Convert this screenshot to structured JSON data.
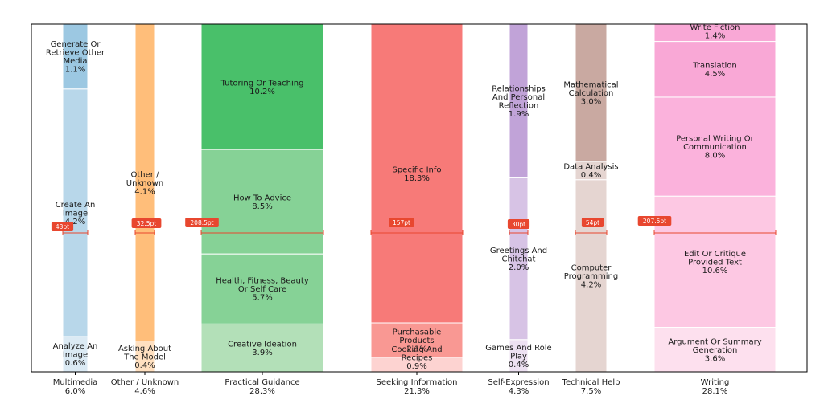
{
  "chart_data": {
    "type": "stacked-bar",
    "colors": {
      "measure": "#e8472f",
      "frame": "#000000"
    },
    "categories": [
      {
        "name": "Multimedia",
        "total": "6.0%",
        "measure_label": "43pt",
        "segments": [
          {
            "label": "Analyze An Image",
            "value": 0.6,
            "display": "0.6%",
            "color": "#dbeaf4"
          },
          {
            "label": "Create An Image",
            "value": 4.2,
            "display": "4.2%",
            "color": "#b8d7ea"
          },
          {
            "label": "Generate Or Retrieve Other Media",
            "value": 1.1,
            "display": "1.1%",
            "color": "#9cc8e2"
          }
        ]
      },
      {
        "name": "Other / Unknown",
        "total": "4.6%",
        "measure_label": "32.5pt",
        "segments": [
          {
            "label": "Asking About The Model",
            "value": 0.4,
            "display": "0.4%",
            "color": "#ffe0c0"
          },
          {
            "label": "Other / Unknown",
            "value": 4.1,
            "display": "4.1%",
            "color": "#ffbe7a"
          }
        ]
      },
      {
        "name": "Practical Guidance",
        "total": "28.3%",
        "measure_label": "208.5pt",
        "segments": [
          {
            "label": "Creative Ideation",
            "value": 3.9,
            "display": "3.9%",
            "color": "#b3e0b8"
          },
          {
            "label": "Health, Fitness, Beauty Or Self Care",
            "value": 5.7,
            "display": "5.7%",
            "color": "#86d296"
          },
          {
            "label": "How To Advice",
            "value": 8.5,
            "display": "8.5%",
            "color": "#86d296"
          },
          {
            "label": "Tutoring Or Teaching",
            "value": 10.2,
            "display": "10.2%",
            "color": "#49c06a"
          }
        ]
      },
      {
        "name": "Seeking Information",
        "total": "21.3%",
        "measure_label": "157pt",
        "segments": [
          {
            "label": "Cooking And Recipes",
            "value": 0.9,
            "display": "0.9%",
            "color": "#fdd3d1"
          },
          {
            "label": "Purchasable Products",
            "value": 2.1,
            "display": "2.1%",
            "color": "#f99893"
          },
          {
            "label": "Specific Info",
            "value": 18.3,
            "display": "18.3%",
            "color": "#f77a78"
          }
        ]
      },
      {
        "name": "Self-Expression",
        "total": "4.3%",
        "measure_label": "30pt",
        "segments": [
          {
            "label": "Games And Role Play",
            "value": 0.4,
            "display": "0.4%",
            "color": "#ede1f2"
          },
          {
            "label": "Greetings And Chitchat",
            "value": 2.0,
            "display": "2.0%",
            "color": "#d7c3e5"
          },
          {
            "label": "Relationships And Personal Reflection",
            "value": 1.9,
            "display": "1.9%",
            "color": "#c1a3d8"
          }
        ]
      },
      {
        "name": "Technical Help",
        "total": "7.5%",
        "measure_label": "54pt",
        "segments": [
          {
            "label": "Computer Programming",
            "value": 4.2,
            "display": "4.2%",
            "color": "#e5d5d1"
          },
          {
            "label": "Data Analysis",
            "value": 0.4,
            "display": "0.4%",
            "color": "#e5d5d1"
          },
          {
            "label": "Mathematical Calculation",
            "value": 3.0,
            "display": "3.0%",
            "color": "#c9a9a1"
          }
        ]
      },
      {
        "name": "Writing",
        "total": "28.1%",
        "measure_label": "207.5pt",
        "segments": [
          {
            "label": "Argument Or Summary Generation",
            "value": 3.6,
            "display": "3.6%",
            "color": "#fde0ee"
          },
          {
            "label": "Edit Or Critique Provided Text",
            "value": 10.6,
            "display": "10.6%",
            "color": "#fdc8e3"
          },
          {
            "label": "Personal Writing Or Communication",
            "value": 8.0,
            "display": "8.0%",
            "color": "#fbb2dc"
          },
          {
            "label": "Translation",
            "value": 4.5,
            "display": "4.5%",
            "color": "#f9a8d6"
          },
          {
            "label": "Write Fiction",
            "value": 1.4,
            "display": "1.4%",
            "color": "#f9a8d6"
          }
        ]
      }
    ]
  }
}
